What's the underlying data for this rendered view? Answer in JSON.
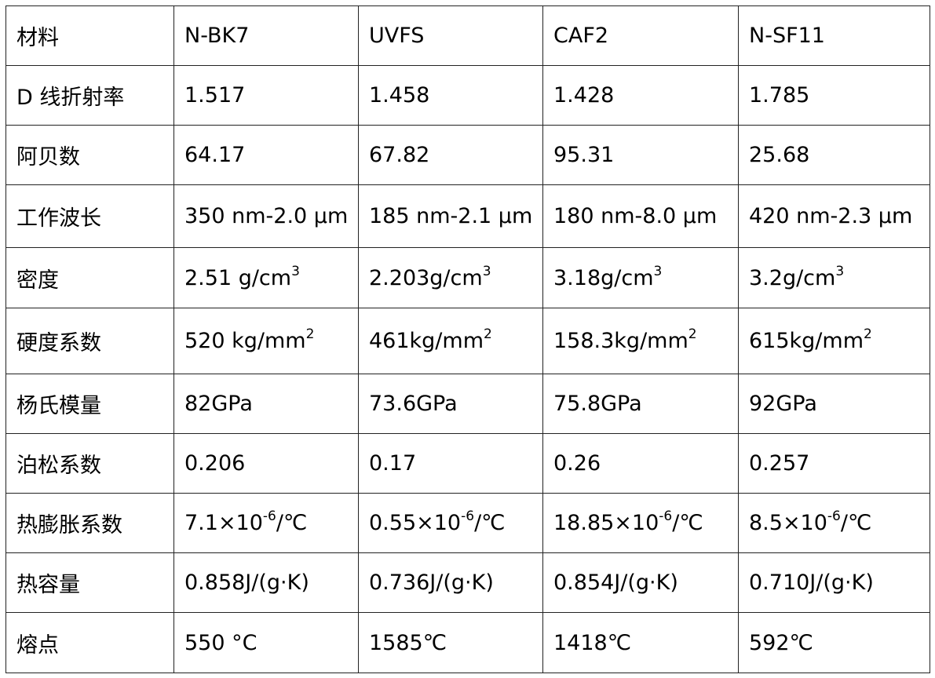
{
  "table": {
    "rows": [
      [
        "材料",
        "N-BK7",
        "UVFS",
        "CAF2",
        "N-SF11"
      ],
      [
        "D 线折射率",
        "1.517",
        "1.458",
        "1.428",
        "1.785"
      ],
      [
        "阿贝数",
        "64.17",
        "67.82",
        "95.31",
        "25.68"
      ],
      [
        "工作波长",
        "350 nm-2.0 μm",
        "185 nm-2.1 μm",
        "180 nm-8.0 μm",
        "420 nm-2.3 μm"
      ],
      [
        "密度",
        {
          "text": "2.51 g/cm",
          "sup": "3"
        },
        {
          "text": "2.203g/cm",
          "sup": "3"
        },
        {
          "text": "3.18g/cm",
          "sup": "3"
        },
        {
          "text": "3.2g/cm",
          "sup": "3"
        }
      ],
      [
        "硬度系数",
        {
          "text": "520 kg/mm",
          "sup": "2"
        },
        {
          "text": "461kg/mm",
          "sup": "2"
        },
        {
          "text": "158.3kg/mm",
          "sup": "2"
        },
        {
          "text": "615kg/mm",
          "sup": "2"
        }
      ],
      [
        "杨氏模量",
        "82GPa",
        "73.6GPa",
        "75.8GPa",
        "92GPa"
      ],
      [
        "泊松系数",
        "0.206",
        "0.17",
        "0.26",
        "0.257"
      ],
      [
        "热膨胀系数",
        {
          "text": "7.1×10",
          "sup": "-6",
          "after": "/℃"
        },
        {
          "text": "0.55×10",
          "sup": "-6",
          "after": "/℃"
        },
        {
          "text": "18.85×10",
          "sup": "-6",
          "after": "/℃"
        },
        {
          "text": "8.5×10",
          "sup": "-6",
          "after": "/℃"
        }
      ],
      [
        "热容量",
        "0.858J/(g·K)",
        "0.736J/(g·K)",
        "0.854J/(g·K)",
        "0.710J/(g·K)"
      ],
      [
        "熔点",
        "550 °C",
        "1585℃",
        "1418℃",
        "592℃"
      ]
    ]
  }
}
